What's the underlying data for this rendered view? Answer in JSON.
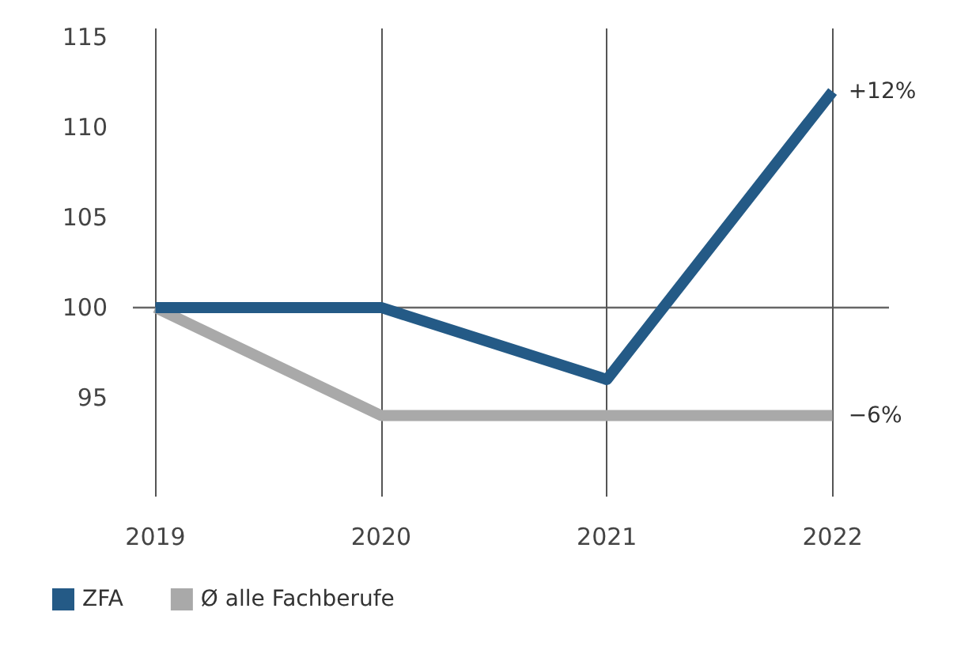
{
  "chart_data": {
    "type": "line",
    "x": [
      2019,
      2020,
      2021,
      2022
    ],
    "xlim": [
      2018.9,
      2022.25
    ],
    "xticks": [
      2019,
      2020,
      2021,
      2022
    ],
    "ylim": [
      89.5,
      115.5
    ],
    "yticks": [
      95,
      100,
      105,
      110,
      115
    ],
    "series": [
      {
        "name": "ZFA",
        "color": "#245a86",
        "values": [
          100,
          100,
          96,
          112
        ]
      },
      {
        "name": "Ø alle Fachberufe",
        "color": "#a9a9a9",
        "values": [
          100,
          94,
          94,
          94
        ]
      }
    ],
    "annotations": [
      {
        "text": "+12%",
        "x": 2022,
        "y": 112
      },
      {
        "text": "−6%",
        "x": 2022,
        "y": 94
      }
    ],
    "ref_lines": [
      {
        "axis": "y",
        "value": 100,
        "color": "#666666"
      }
    ],
    "grid": "x",
    "legend": "bottom left",
    "marker": "none",
    "line_style": "solid"
  }
}
